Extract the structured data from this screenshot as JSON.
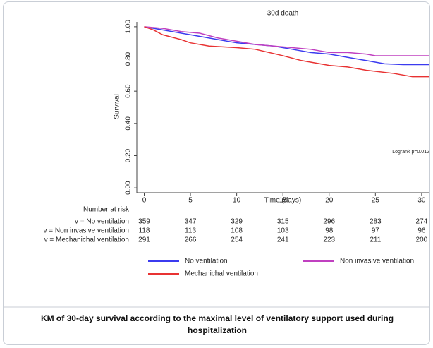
{
  "chart_data": {
    "type": "line",
    "title": "30d death",
    "xlabel": "Time (days)",
    "ylabel": "Survival",
    "annotation": "Logrank p=0.012",
    "xlim": [
      -0.8,
      31
    ],
    "xticks": [
      0,
      5,
      10,
      15,
      20,
      25,
      30
    ],
    "ylim": [
      -0.03,
      1.03
    ],
    "yticks": [
      {
        "value": 0,
        "label": "0.00"
      },
      {
        "value": 0.2,
        "label": "0.20"
      },
      {
        "value": 0.4,
        "label": "0.40"
      },
      {
        "value": 0.6,
        "label": "0.60"
      },
      {
        "value": 0.8,
        "label": "0.80"
      },
      {
        "value": 1,
        "label": "1.00"
      }
    ],
    "series": [
      {
        "name": "No ventilation",
        "color": "#3b3bef",
        "x": [
          0,
          2,
          4,
          6,
          8,
          10,
          12,
          14,
          16,
          18,
          20,
          22,
          24,
          26,
          28,
          31
        ],
        "values": [
          1.0,
          0.98,
          0.96,
          0.94,
          0.92,
          0.9,
          0.89,
          0.88,
          0.86,
          0.84,
          0.83,
          0.81,
          0.79,
          0.77,
          0.765,
          0.765
        ]
      },
      {
        "name": "Non invasive ventilation",
        "color": "#c040c0",
        "x": [
          0,
          2,
          4,
          6,
          8,
          10,
          12,
          14,
          16,
          18,
          20,
          22,
          24,
          25,
          31
        ],
        "values": [
          1.0,
          0.99,
          0.97,
          0.96,
          0.93,
          0.91,
          0.89,
          0.88,
          0.87,
          0.86,
          0.84,
          0.84,
          0.83,
          0.82,
          0.82
        ]
      },
      {
        "name": "Mechanichal ventilation",
        "color": "#e83232",
        "x": [
          0,
          1,
          2,
          4,
          5,
          7,
          10,
          12,
          15,
          17,
          20,
          22,
          24,
          27,
          29,
          31
        ],
        "values": [
          1.0,
          0.98,
          0.95,
          0.92,
          0.9,
          0.88,
          0.87,
          0.86,
          0.82,
          0.79,
          0.76,
          0.75,
          0.73,
          0.71,
          0.69,
          0.69
        ]
      }
    ],
    "risk_table": {
      "title": "Number at risk",
      "rows": [
        {
          "label": "v = No ventilation",
          "values": [
            359,
            347,
            329,
            315,
            296,
            283,
            274
          ]
        },
        {
          "label": "v = Non invasive ventilation",
          "values": [
            118,
            113,
            108,
            103,
            98,
            97,
            96
          ]
        },
        {
          "label": "v = Mechanichal ventilation",
          "values": [
            291,
            266,
            254,
            241,
            223,
            211,
            200
          ]
        }
      ]
    }
  },
  "caption": "KM of 30-day survival according to the maximal level of ventilatory support used during hospitalization"
}
